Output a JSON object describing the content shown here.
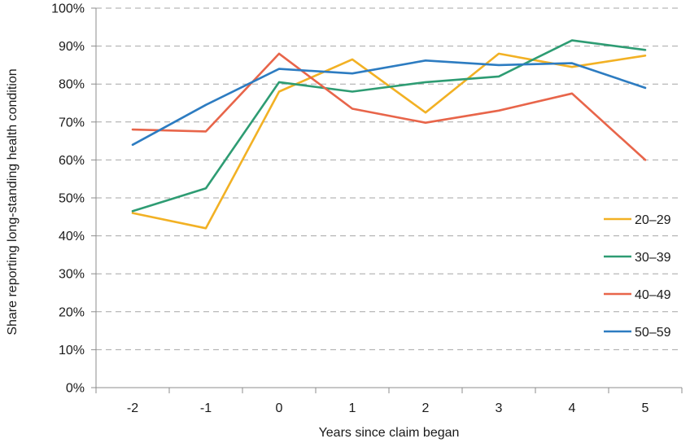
{
  "chart_data": {
    "type": "line",
    "title": "",
    "xlabel": "Years since claim began",
    "ylabel": "Share reporting long-standing health condition",
    "categories": [
      "-2",
      "-1",
      "0",
      "1",
      "2",
      "3",
      "4",
      "5"
    ],
    "ylim": [
      0,
      100
    ],
    "yticks": [
      0,
      10,
      20,
      30,
      40,
      50,
      60,
      70,
      80,
      90,
      100
    ],
    "ytick_labels": [
      "0%",
      "10%",
      "20%",
      "30%",
      "40%",
      "50%",
      "60%",
      "70%",
      "80%",
      "90%",
      "100%"
    ],
    "grid": "horizontal dashed",
    "legend_position": "right",
    "series": [
      {
        "name": "20–29",
        "color": "#F2B124",
        "values": [
          46,
          42,
          78,
          86.5,
          72.5,
          88,
          84.5,
          87.5
        ]
      },
      {
        "name": "30–39",
        "color": "#2E9C73",
        "values": [
          46.5,
          52.5,
          80.5,
          78,
          80.5,
          82,
          91.5,
          89
        ]
      },
      {
        "name": "40–49",
        "color": "#E8654A",
        "values": [
          68,
          67.5,
          88,
          73.5,
          69.8,
          73,
          77.5,
          60
        ]
      },
      {
        "name": "50–59",
        "color": "#2D7CC1",
        "values": [
          64,
          74.5,
          84,
          82.8,
          86.2,
          85,
          85.5,
          79
        ]
      }
    ]
  }
}
